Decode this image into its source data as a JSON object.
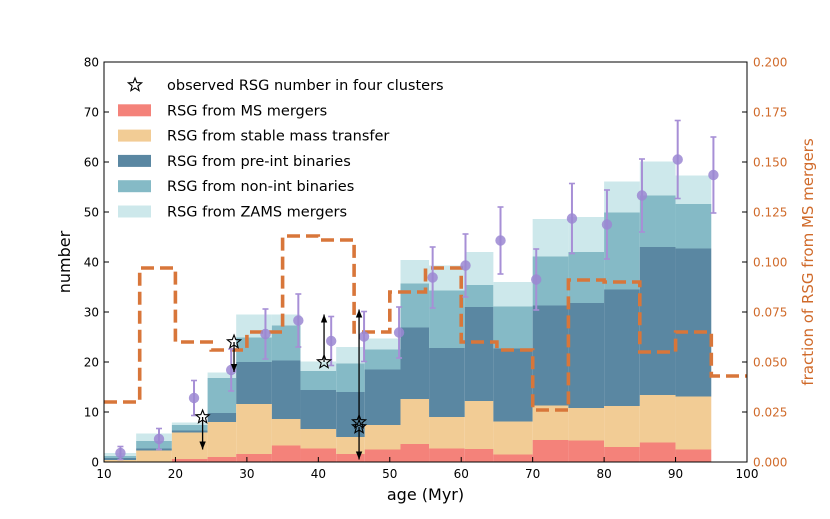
{
  "chart_data": {
    "type": "bar",
    "stacked": true,
    "x_bin_edges": [
      10,
      14.5,
      19.5,
      24.5,
      28.5,
      33.5,
      37.5,
      42.5,
      46.5,
      51.5,
      55.5,
      60.5,
      64.5,
      70,
      75,
      80,
      85,
      90,
      95,
      100
    ],
    "xlabel": "age (Myr)",
    "ylabel": "number",
    "y2label": "fraction of RSG from MS mergers",
    "xlim": [
      10,
      100
    ],
    "ylim": [
      0,
      80
    ],
    "y2lim": [
      0,
      0.2
    ],
    "xticks": [
      "10",
      "20",
      "30",
      "40",
      "50",
      "60",
      "70",
      "80",
      "90",
      "100"
    ],
    "yticks": [
      "0",
      "10",
      "20",
      "30",
      "40",
      "50",
      "60",
      "70",
      "80"
    ],
    "y2ticks": [
      "0.000",
      "0.025",
      "0.050",
      "0.075",
      "0.100",
      "0.125",
      "0.150",
      "0.175",
      "0.200"
    ],
    "colors": {
      "ms_mergers": "#f4827a",
      "stable_mt": "#f2cc95",
      "pre_int": "#5a87a2",
      "non_int": "#85bac6",
      "zams": "#cde8eb",
      "fraction_line": "#d8763a",
      "sim_points": "#9b87d2",
      "error_bars": "#a78fd6"
    },
    "series": [
      {
        "name": "RSG from MS mergers",
        "key": "ms_mergers",
        "values": [
          0,
          0,
          0.6,
          1.0,
          1.6,
          3.3,
          2.7,
          1.6,
          2.5,
          3.6,
          2.7,
          2.6,
          1.5,
          4.4,
          4.3,
          3.0,
          3.9,
          2.5,
          0
        ]
      },
      {
        "name": "RSG from stable mass transfer",
        "key": "stable_mt",
        "values": [
          0.4,
          2.3,
          5.3,
          7.0,
          10.0,
          5.3,
          3.9,
          3.4,
          4.9,
          9.0,
          6.3,
          9.6,
          6.6,
          6.9,
          6.5,
          8.2,
          9.5,
          10.6,
          0
        ]
      },
      {
        "name": "RSG from pre-int binaries",
        "key": "pre_int",
        "values": [
          0.4,
          0.4,
          0.4,
          1.8,
          8.4,
          11.7,
          7.8,
          9.0,
          11.1,
          14.3,
          13.8,
          18.8,
          14.6,
          20.0,
          21.0,
          23.3,
          29.6,
          29.6,
          0
        ]
      },
      {
        "name": "RSG from non-int binaries",
        "key": "non_int",
        "values": [
          0.4,
          1.5,
          1.1,
          7.0,
          4.9,
          7.0,
          3.8,
          5.7,
          4.0,
          8.8,
          11.5,
          4.4,
          8.4,
          9.8,
          10.2,
          15.4,
          10.3,
          8.9,
          0
        ]
      },
      {
        "name": "RSG from ZAMS mergers",
        "key": "zams",
        "values": [
          0.6,
          1.5,
          0.5,
          1.1,
          4.6,
          2.2,
          1.9,
          3.3,
          2.2,
          4.7,
          5.0,
          6.6,
          4.9,
          7.5,
          7.0,
          6.2,
          6.8,
          5.7,
          0
        ]
      }
    ],
    "simulated_points": {
      "x": [
        12.3,
        17.7,
        22.6,
        27.8,
        32.6,
        37.2,
        41.8,
        46.4,
        51.3,
        56.0,
        60.6,
        65.5,
        70.5,
        75.5,
        80.4,
        85.3,
        90.3,
        95.3
      ],
      "y": [
        1.8,
        4.6,
        12.8,
        18.4,
        25.6,
        28.3,
        24.2,
        25.1,
        25.9,
        36.9,
        39.3,
        44.3,
        36.5,
        48.7,
        47.5,
        53.3,
        60.5,
        57.4
      ],
      "err": [
        1.3,
        2.1,
        3.5,
        4.2,
        5.0,
        5.3,
        4.9,
        5.0,
        5.1,
        6.1,
        6.3,
        6.7,
        6.1,
        7.0,
        6.9,
        7.3,
        7.8,
        7.6
      ]
    },
    "observed_clusters": [
      {
        "x": 23.8,
        "y": 9.0,
        "arrow": "down",
        "arrow_to": 2.5
      },
      {
        "x": 28.2,
        "y": 24.0,
        "arrow": "down",
        "arrow_to": 18.0
      },
      {
        "x": 40.8,
        "y": 20.0,
        "arrow": "up",
        "arrow_to": 29.5
      },
      {
        "x": 45.7,
        "y": 8.0,
        "arrow": "up",
        "arrow_to": 30.5
      },
      {
        "x": 45.7,
        "y": 7.0,
        "arrow": "down",
        "arrow_to": 0.5
      }
    ],
    "fraction_step": {
      "edges": [
        10,
        15,
        20,
        25,
        30,
        35,
        40,
        45,
        50,
        55,
        60,
        65,
        70,
        75,
        80,
        85,
        90,
        95,
        100
      ],
      "values": [
        0.03,
        0.097,
        0.06,
        0.056,
        0.065,
        0.113,
        0.111,
        0.065,
        0.085,
        0.097,
        0.06,
        0.056,
        0.026,
        0.091,
        0.09,
        0.055,
        0.065,
        0.043
      ]
    },
    "legend": {
      "placement": "top-left",
      "entries": [
        {
          "label": "observed RSG number in four clusters",
          "marker": "star"
        },
        {
          "label": "RSG from MS mergers",
          "key": "ms_mergers"
        },
        {
          "label": "RSG from stable mass transfer",
          "key": "stable_mt"
        },
        {
          "label": "RSG from pre-int binaries",
          "key": "pre_int"
        },
        {
          "label": "RSG from non-int binaries",
          "key": "non_int"
        },
        {
          "label": "RSG from ZAMS mergers",
          "key": "zams"
        }
      ]
    }
  }
}
